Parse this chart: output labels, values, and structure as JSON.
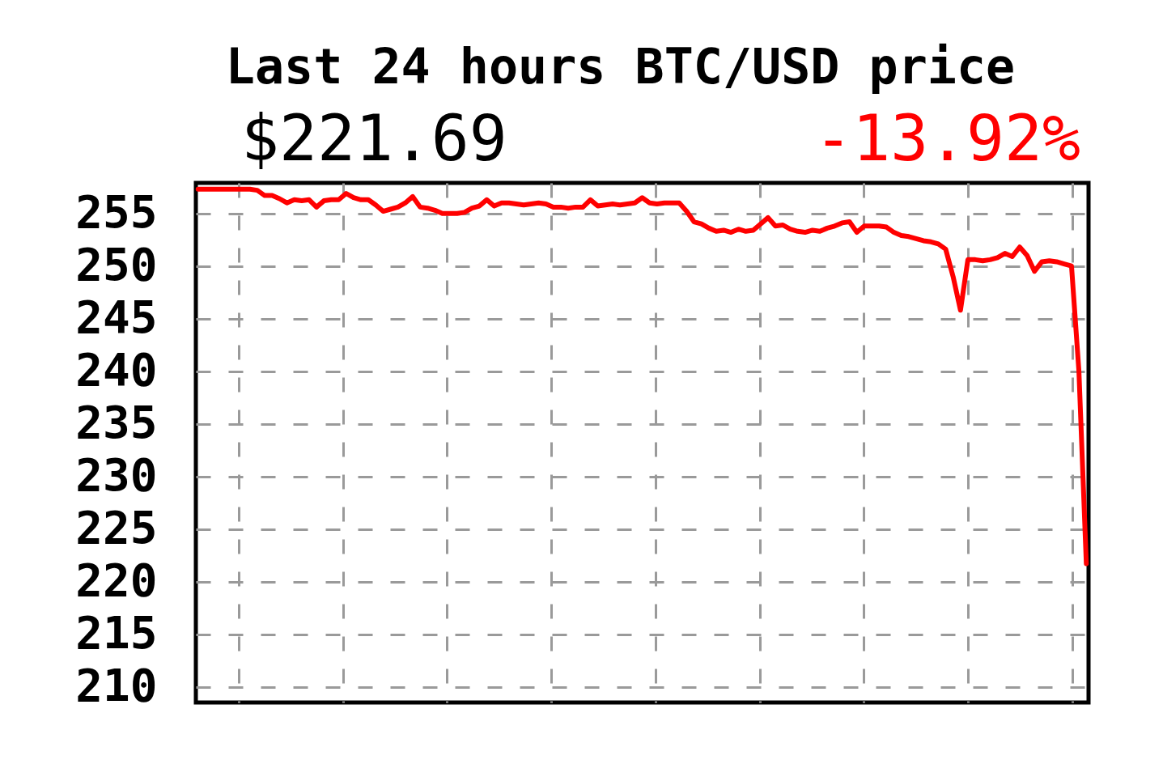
{
  "chart_data": {
    "type": "line",
    "title": "Last 24 hours BTC/USD price",
    "annotations": [
      "$221.69",
      "-13.92%"
    ],
    "categories": [
      null,
      null,
      null,
      null,
      null,
      null,
      null,
      null,
      null,
      null,
      null,
      null,
      null,
      null,
      null,
      null,
      null,
      null,
      null,
      null,
      null,
      null,
      null,
      null,
      null,
      null,
      null,
      null,
      null,
      null,
      null,
      null,
      null,
      null,
      null,
      null,
      null,
      null,
      null,
      null,
      null,
      null,
      null,
      null,
      null,
      null,
      null,
      null,
      null,
      null,
      null,
      null,
      null,
      null,
      null,
      null,
      null,
      null,
      null,
      null,
      null,
      null,
      null,
      null,
      null,
      null,
      null,
      null,
      null,
      null,
      null,
      null,
      null,
      null,
      null,
      null,
      null,
      null,
      null,
      null,
      null,
      null,
      null,
      null,
      null,
      null,
      null,
      null,
      null,
      null,
      null,
      null,
      null,
      null,
      null,
      null,
      null,
      null,
      null,
      null,
      null,
      null,
      null,
      null,
      null,
      null,
      null,
      null,
      null,
      null,
      null,
      null,
      null,
      null,
      null,
      null,
      null,
      null,
      null,
      null,
      null
    ],
    "series": [
      {
        "color": "#ff0000",
        "values": [
          257.3,
          257.3,
          257.3,
          257.3,
          257.3,
          257.3,
          257.3,
          257.3,
          257.2,
          256.7,
          256.7,
          256.4,
          256.0,
          256.3,
          256.2,
          256.3,
          255.6,
          256.2,
          256.3,
          256.3,
          256.9,
          256.5,
          256.3,
          256.3,
          255.8,
          255.2,
          255.4,
          255.6,
          256.0,
          256.6,
          255.6,
          255.5,
          255.3,
          255.0,
          255.0,
          255.0,
          255.1,
          255.5,
          255.7,
          256.3,
          255.7,
          256.0,
          256.0,
          255.9,
          255.8,
          255.9,
          256.0,
          255.9,
          255.6,
          255.6,
          255.5,
          255.6,
          255.6,
          256.3,
          255.7,
          255.8,
          255.9,
          255.8,
          255.9,
          256.0,
          256.5,
          256.0,
          255.9,
          256.0,
          256.0,
          256.0,
          255.2,
          254.2,
          254.0,
          253.6,
          253.3,
          253.4,
          253.2,
          253.5,
          253.3,
          253.4,
          254.0,
          254.6,
          253.8,
          253.9,
          253.5,
          253.3,
          253.2,
          253.4,
          253.3,
          253.6,
          253.8,
          254.1,
          254.2,
          253.2,
          253.8,
          253.8,
          253.8,
          253.7,
          253.2,
          252.9,
          252.8,
          252.6,
          252.4,
          252.3,
          252.1,
          251.6,
          249.0,
          245.8,
          250.6,
          250.6,
          250.5,
          250.6,
          250.8,
          251.2,
          250.9,
          251.8,
          251.0,
          249.5,
          250.4,
          250.5,
          250.4,
          250.2,
          250.0,
          240.0,
          221.7
        ]
      }
    ],
    "ylim": [
      208.5,
      257.9
    ],
    "yticks": [
      210,
      215,
      220,
      225,
      230,
      235,
      240,
      245,
      250,
      255
    ],
    "grid": true,
    "tick_labels": "y",
    "marker": "none",
    "line_style": "solid"
  }
}
